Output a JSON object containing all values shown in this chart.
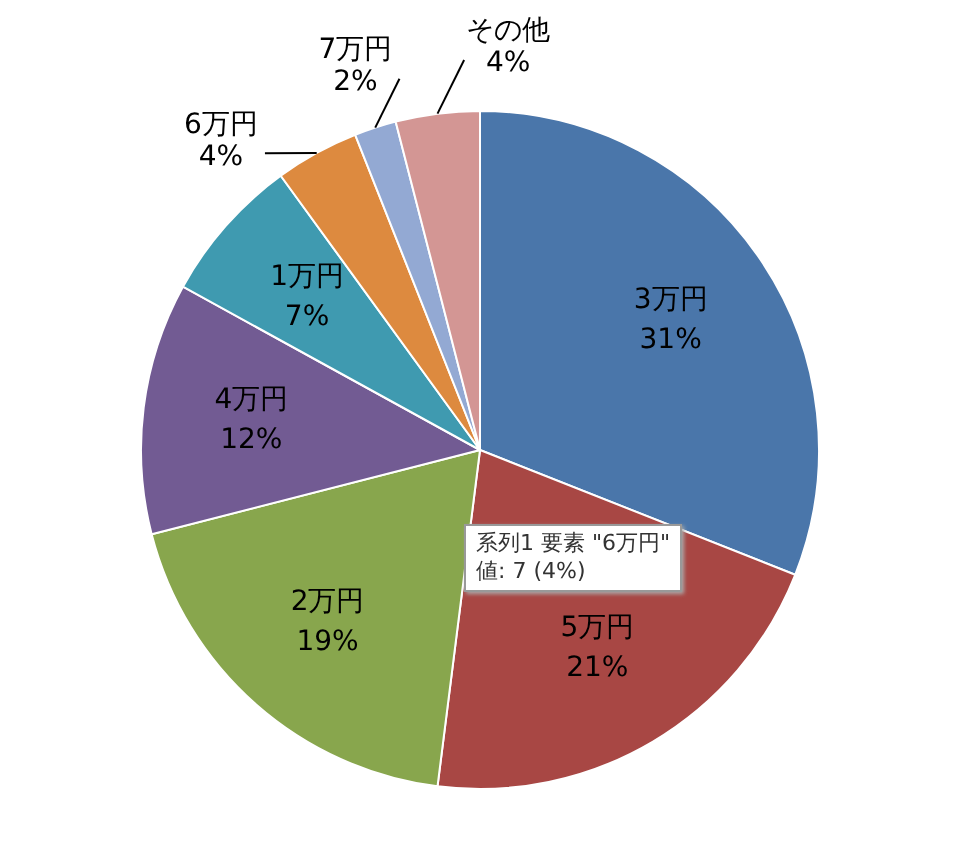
{
  "chart_data": {
    "type": "pie",
    "categories": [
      "3万円",
      "5万円",
      "2万円",
      "4万円",
      "1万円",
      "6万円",
      "7万円",
      "その他"
    ],
    "values": [
      31,
      21,
      19,
      12,
      7,
      4,
      2,
      4
    ],
    "colors": [
      "#4a76aa",
      "#a84744",
      "#88a64d",
      "#725b93",
      "#3f9ab0",
      "#dd8a3f",
      "#93a9d3",
      "#d39694"
    ],
    "value_labels": [
      "31%",
      "21%",
      "19%",
      "12%",
      "7%",
      "4%",
      "2%",
      "4%"
    ],
    "legend": false,
    "annotations": [
      "系列1 要素 \"6万円\"\n値: 7 (4%)"
    ]
  }
}
